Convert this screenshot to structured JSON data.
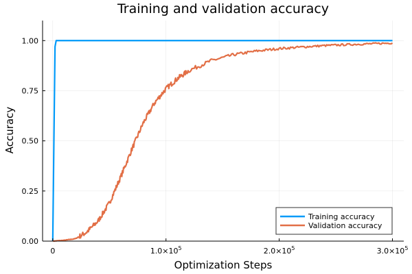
{
  "chart_data": {
    "type": "line",
    "title": "Training and validation accuracy",
    "xlabel": "Optimization Steps",
    "ylabel": "Accuracy",
    "xlim": [
      -9000,
      310000
    ],
    "ylim": [
      0,
      1.1
    ],
    "grid": true,
    "legend_position": "bottom-right",
    "x_ticks": [
      {
        "value": 0,
        "label": "0",
        "exp": ""
      },
      {
        "value": 100000,
        "label": "1.0×10",
        "exp": "5"
      },
      {
        "value": 200000,
        "label": "2.0×10",
        "exp": "5"
      },
      {
        "value": 300000,
        "label": "3.0×10",
        "exp": "5"
      }
    ],
    "y_ticks": [
      {
        "value": 0,
        "label": "0.00"
      },
      {
        "value": 0.25,
        "label": "0.25"
      },
      {
        "value": 0.5,
        "label": "0.50"
      },
      {
        "value": 0.75,
        "label": "0.75"
      },
      {
        "value": 1.0,
        "label": "1.00"
      }
    ],
    "series": [
      {
        "name": "Training accuracy",
        "color": "#009af9",
        "x": [
          0,
          1000,
          2000,
          3000,
          300000
        ],
        "y": [
          0,
          0.5,
          0.97,
          1.0,
          1.0
        ]
      },
      {
        "name": "Validation accuracy",
        "color": "#e26f46",
        "x": [
          0,
          10000,
          20000,
          30000,
          40000,
          50000,
          60000,
          70000,
          80000,
          90000,
          100000,
          110000,
          120000,
          140000,
          160000,
          180000,
          200000,
          220000,
          240000,
          260000,
          280000,
          300000
        ],
        "y": [
          0,
          0.004,
          0.012,
          0.045,
          0.1,
          0.19,
          0.32,
          0.46,
          0.59,
          0.69,
          0.76,
          0.81,
          0.85,
          0.9,
          0.93,
          0.948,
          0.96,
          0.968,
          0.975,
          0.98,
          0.984,
          0.988
        ]
      }
    ]
  }
}
